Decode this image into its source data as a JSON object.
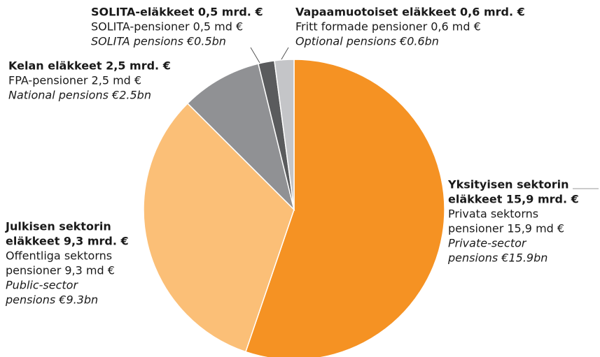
{
  "chart_data": {
    "type": "pie",
    "values": [
      15.9,
      9.3,
      2.5,
      0.5,
      0.6
    ],
    "colors": [
      "#f59223",
      "#fbbf77",
      "#909194",
      "#5a5b5d",
      "#c4c5c8"
    ],
    "labels": [
      {
        "fi": [
          "Yksityisen sektorin",
          "eläkkeet 15,9 mrd. €"
        ],
        "sv": [
          "Privata sektorns",
          "pensioner 15,9 md €"
        ],
        "en": [
          "Private-sector",
          "pensions €15.9bn"
        ]
      },
      {
        "fi": [
          "Julkisen sektorin",
          "eläkkeet 9,3 mrd. €"
        ],
        "sv": [
          "Offentliga sektorns",
          "pensioner 9,3 md €"
        ],
        "en": [
          "Public-sector",
          "pensions €9.3bn"
        ]
      },
      {
        "fi": [
          "Kelan eläkkeet 2,5 mrd. €"
        ],
        "sv": [
          "FPA-pensioner 2,5 md €"
        ],
        "en": [
          "National pensions €2.5bn"
        ]
      },
      {
        "fi": [
          "SOLITA-eläkkeet 0,5 mrd. €"
        ],
        "sv": [
          "SOLITA-pensioner 0,5 md €"
        ],
        "en": [
          "SOLITA pensions €0.5bn"
        ]
      },
      {
        "fi": [
          "Vapaamuotoiset eläkkeet 0,6 mrd. €"
        ],
        "sv": [
          "Fritt formade pensioner 0,6 md €"
        ],
        "en": [
          "Optional pensions €0.6bn"
        ]
      }
    ]
  }
}
